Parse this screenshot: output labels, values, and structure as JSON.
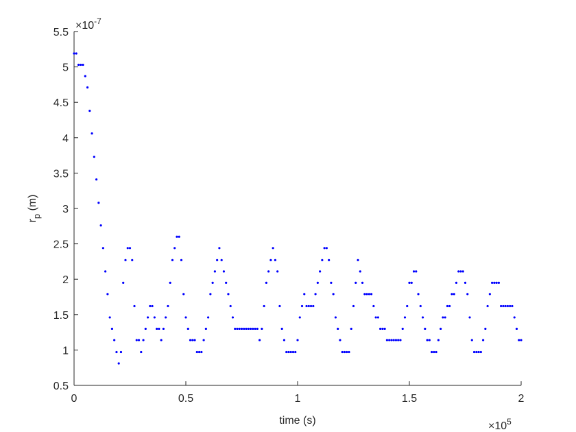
{
  "chart_data": {
    "type": "scatter",
    "xlabel": "time (s)",
    "ylabel": {
      "main": "r",
      "sub": "p",
      "rest": " (m)"
    },
    "x_exponent": {
      "base": "×10",
      "power": "5"
    },
    "y_exponent": {
      "base": "×10",
      "power": "-7"
    },
    "color": "#0000ff",
    "xlim": [
      0,
      2
    ],
    "xticks": [
      0,
      0.5,
      1,
      1.5,
      2
    ],
    "ylim": [
      0.5,
      5.5
    ],
    "yticks": [
      0.5,
      1,
      1.5,
      2,
      2.5,
      3,
      3.5,
      4,
      4.5,
      5,
      5.5
    ],
    "x": [
      0,
      0.01,
      0.02,
      0.03,
      0.04,
      0.05,
      0.06,
      0.07,
      0.08,
      0.09,
      0.1,
      0.11,
      0.12,
      0.13,
      0.14,
      0.15,
      0.16,
      0.17,
      0.18,
      0.19,
      0.2,
      0.21,
      0.22,
      0.23,
      0.24,
      0.25,
      0.26,
      0.27,
      0.28,
      0.29,
      0.3,
      0.31,
      0.32,
      0.33,
      0.34,
      0.35,
      0.36,
      0.37,
      0.38,
      0.39,
      0.4,
      0.41,
      0.42,
      0.43,
      0.44,
      0.45,
      0.46,
      0.47,
      0.48,
      0.49,
      0.5,
      0.51,
      0.52,
      0.53,
      0.54,
      0.55,
      0.56,
      0.57,
      0.58,
      0.59,
      0.6,
      0.61,
      0.62,
      0.63,
      0.64,
      0.65,
      0.66,
      0.67,
      0.68,
      0.69,
      0.7,
      0.71,
      0.72,
      0.73,
      0.74,
      0.75,
      0.76,
      0.77,
      0.78,
      0.79,
      0.8,
      0.81,
      0.82,
      0.83,
      0.84,
      0.85,
      0.86,
      0.87,
      0.88,
      0.89,
      0.9,
      0.91,
      0.92,
      0.93,
      0.94,
      0.95,
      0.96,
      0.97,
      0.98,
      0.99,
      1,
      1.01,
      1.02,
      1.03,
      1.04,
      1.05,
      1.06,
      1.07,
      1.08,
      1.09,
      1.1,
      1.11,
      1.12,
      1.13,
      1.14,
      1.15,
      1.16,
      1.17,
      1.18,
      1.19,
      1.2,
      1.21,
      1.22,
      1.23,
      1.24,
      1.25,
      1.26,
      1.27,
      1.28,
      1.29,
      1.3,
      1.31,
      1.32,
      1.33,
      1.34,
      1.35,
      1.36,
      1.37,
      1.38,
      1.39,
      1.4,
      1.41,
      1.42,
      1.43,
      1.44,
      1.45,
      1.46,
      1.47,
      1.48,
      1.49,
      1.5,
      1.51,
      1.52,
      1.53,
      1.54,
      1.55,
      1.56,
      1.57,
      1.58,
      1.59,
      1.6,
      1.61,
      1.62,
      1.63,
      1.64,
      1.65,
      1.66,
      1.67,
      1.68,
      1.69,
      1.7,
      1.71,
      1.72,
      1.73,
      1.74,
      1.75,
      1.76,
      1.77,
      1.78,
      1.79,
      1.8,
      1.81,
      1.82,
      1.83,
      1.84,
      1.85,
      1.86,
      1.87,
      1.88,
      1.89,
      1.9,
      1.91,
      1.92,
      1.93,
      1.94,
      1.95,
      1.96,
      1.97,
      1.98,
      1.99,
      2
    ],
    "values": [
      5.19,
      5.19,
      5.03,
      5.03,
      5.03,
      4.87,
      4.71,
      4.38,
      4.06,
      3.73,
      3.41,
      3.08,
      2.76,
      2.44,
      2.11,
      1.79,
      1.46,
      1.3,
      1.14,
      0.97,
      0.81,
      0.97,
      1.95,
      2.27,
      2.44,
      2.44,
      2.27,
      1.62,
      1.14,
      1.14,
      0.97,
      1.14,
      1.3,
      1.46,
      1.62,
      1.62,
      1.46,
      1.3,
      1.3,
      1.14,
      1.3,
      1.46,
      1.62,
      1.95,
      2.27,
      2.44,
      2.6,
      2.6,
      2.27,
      1.79,
      1.46,
      1.3,
      1.14,
      1.14,
      1.14,
      0.97,
      0.97,
      0.97,
      1.14,
      1.3,
      1.46,
      1.79,
      1.95,
      2.11,
      2.27,
      2.44,
      2.27,
      2.11,
      1.95,
      1.79,
      1.62,
      1.46,
      1.3,
      1.3,
      1.3,
      1.3,
      1.3,
      1.3,
      1.3,
      1.3,
      1.3,
      1.3,
      1.3,
      1.14,
      1.3,
      1.62,
      1.95,
      2.11,
      2.27,
      2.44,
      2.27,
      2.11,
      1.62,
      1.3,
      1.14,
      0.97,
      0.97,
      0.97,
      0.97,
      0.97,
      1.14,
      1.46,
      1.62,
      1.79,
      1.62,
      1.62,
      1.62,
      1.62,
      1.79,
      1.95,
      2.11,
      2.27,
      2.44,
      2.44,
      2.27,
      1.95,
      1.79,
      1.46,
      1.3,
      1.14,
      0.97,
      0.97,
      0.97,
      0.97,
      1.3,
      1.62,
      1.95,
      2.27,
      2.11,
      1.95,
      1.79,
      1.79,
      1.79,
      1.79,
      1.62,
      1.46,
      1.46,
      1.3,
      1.3,
      1.3,
      1.14,
      1.14,
      1.14,
      1.14,
      1.14,
      1.14,
      1.14,
      1.3,
      1.46,
      1.62,
      1.95,
      1.95,
      2.11,
      2.11,
      1.79,
      1.62,
      1.46,
      1.3,
      1.14,
      1.14,
      0.97,
      0.97,
      0.97,
      1.14,
      1.3,
      1.46,
      1.46,
      1.62,
      1.62,
      1.79,
      1.79,
      1.95,
      2.11,
      2.11,
      2.11,
      1.95,
      1.79,
      1.46,
      1.14,
      0.97,
      0.97,
      0.97,
      0.97,
      1.14,
      1.3,
      1.62,
      1.79,
      1.95,
      1.95,
      1.95,
      1.95,
      1.62,
      1.62,
      1.62,
      1.62,
      1.62,
      1.62,
      1.46,
      1.3,
      1.14,
      1.14
    ]
  }
}
